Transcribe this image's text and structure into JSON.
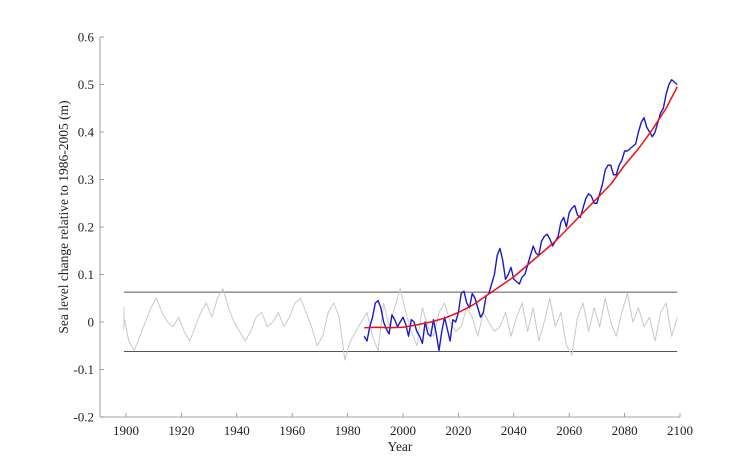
{
  "chart_data": {
    "type": "line",
    "title": "",
    "xlabel": "Year",
    "ylabel": "Sea level change relative to 1986-2005 (m)",
    "xlim": [
      1895,
      2100
    ],
    "ylim": [
      -0.2,
      0.6
    ],
    "xticks": [
      1900,
      1920,
      1940,
      1960,
      1980,
      2000,
      2020,
      2040,
      2060,
      2080,
      2100
    ],
    "yticks": [
      -0.2,
      -0.1,
      0,
      0.1,
      0.2,
      0.3,
      0.4,
      0.5,
      0.6
    ],
    "grid": false,
    "series": [
      {
        "color": "#c8c8c8",
        "x": [
          1895,
          1897,
          1899,
          1901,
          1903,
          1905,
          1907,
          1909,
          1911,
          1913,
          1915,
          1917,
          1919,
          1921,
          1923,
          1925,
          1927,
          1929,
          1931,
          1933,
          1935,
          1937,
          1939,
          1941,
          1943,
          1945,
          1947,
          1949,
          1951,
          1953,
          1955,
          1957,
          1959,
          1961,
          1963,
          1965,
          1967,
          1969,
          1971,
          1973,
          1975,
          1977,
          1979,
          1981,
          1983,
          1985,
          1987,
          1989,
          1991,
          1993,
          1995,
          1997,
          1999,
          2001,
          2003,
          2005,
          2007,
          2009,
          2011,
          2013,
          2015,
          2017,
          2019,
          2021,
          2023,
          2025,
          2027,
          2029,
          2031,
          2033,
          2035,
          2037,
          2039,
          2041,
          2043,
          2045,
          2047,
          2049,
          2051,
          2053,
          2055,
          2057,
          2059,
          2061,
          2063,
          2065,
          2067,
          2069,
          2071,
          2073,
          2075,
          2077,
          2079,
          2081,
          2083,
          2085,
          2087,
          2089,
          2091,
          2093,
          2095,
          2097,
          2099
        ],
        "y": [
          -0.015,
          0.03,
          0.01,
          -0.04,
          -0.06,
          -0.03,
          0.0,
          0.03,
          0.05,
          0.02,
          0.0,
          -0.01,
          0.01,
          -0.02,
          -0.04,
          -0.01,
          0.02,
          0.04,
          0.01,
          0.05,
          0.07,
          0.03,
          0.0,
          -0.02,
          -0.04,
          -0.02,
          0.01,
          0.02,
          -0.01,
          0.0,
          0.02,
          -0.01,
          0.01,
          0.04,
          0.05,
          0.02,
          -0.01,
          -0.05,
          -0.03,
          0.02,
          0.04,
          0.01,
          -0.08,
          -0.04,
          -0.02,
          0.0,
          0.02,
          -0.03,
          -0.06,
          0.04,
          -0.01,
          0.03,
          0.07,
          0.02,
          -0.02,
          -0.05,
          0.03,
          -0.01,
          -0.03,
          0.02,
          0.04,
          0.0,
          -0.02,
          -0.01,
          0.03,
          0.01,
          -0.03,
          0.02,
          0.0,
          -0.02,
          -0.01,
          0.02,
          -0.03,
          0.01,
          0.04,
          -0.02,
          0.03,
          -0.04,
          0.0,
          0.05,
          -0.01,
          0.02,
          -0.05,
          -0.07,
          0.01,
          0.04,
          -0.02,
          0.03,
          -0.01,
          0.05,
          0.0,
          -0.03,
          0.02,
          0.06,
          0.0,
          0.03,
          -0.01,
          0.01,
          -0.04,
          0.02,
          0.04,
          -0.03,
          0.01
        ]
      },
      {
        "color": "#1a1acc",
        "x": [
          1986,
          1987,
          1988,
          1989,
          1990,
          1991,
          1992,
          1993,
          1994,
          1995,
          1996,
          1997,
          1998,
          1999,
          2000,
          2001,
          2002,
          2003,
          2004,
          2005,
          2006,
          2007,
          2008,
          2009,
          2010,
          2011,
          2012,
          2013,
          2014,
          2015,
          2016,
          2017,
          2018,
          2019,
          2020,
          2021,
          2022,
          2023,
          2024,
          2025,
          2026,
          2027,
          2028,
          2029,
          2030,
          2031,
          2032,
          2033,
          2034,
          2035,
          2036,
          2037,
          2038,
          2039,
          2040,
          2041,
          2042,
          2043,
          2044,
          2045,
          2046,
          2047,
          2048,
          2049,
          2050,
          2051,
          2052,
          2053,
          2054,
          2055,
          2056,
          2057,
          2058,
          2059,
          2060,
          2061,
          2062,
          2063,
          2064,
          2065,
          2066,
          2067,
          2068,
          2069,
          2070,
          2071,
          2072,
          2073,
          2074,
          2075,
          2076,
          2077,
          2078,
          2079,
          2080,
          2081,
          2082,
          2083,
          2084,
          2085,
          2086,
          2087,
          2088,
          2089,
          2090,
          2091,
          2092,
          2093,
          2094,
          2095,
          2096,
          2097,
          2098,
          2099
        ],
        "y": [
          -0.03,
          -0.04,
          -0.01,
          0.01,
          0.04,
          0.045,
          0.03,
          0.0,
          -0.015,
          -0.025,
          0.015,
          0.005,
          -0.01,
          0.0,
          0.01,
          -0.005,
          -0.03,
          0.005,
          0.0,
          -0.02,
          -0.03,
          -0.045,
          0.0,
          -0.025,
          -0.03,
          0.005,
          -0.025,
          -0.06,
          -0.02,
          0.01,
          -0.015,
          -0.04,
          0.005,
          0.0,
          0.02,
          0.06,
          0.065,
          0.04,
          0.03,
          0.06,
          0.05,
          0.03,
          0.01,
          0.02,
          0.055,
          0.06,
          0.08,
          0.1,
          0.14,
          0.155,
          0.13,
          0.09,
          0.1,
          0.115,
          0.09,
          0.085,
          0.08,
          0.095,
          0.1,
          0.12,
          0.14,
          0.16,
          0.145,
          0.14,
          0.17,
          0.18,
          0.185,
          0.175,
          0.16,
          0.17,
          0.18,
          0.21,
          0.22,
          0.2,
          0.23,
          0.24,
          0.245,
          0.225,
          0.22,
          0.24,
          0.26,
          0.27,
          0.265,
          0.25,
          0.25,
          0.27,
          0.29,
          0.32,
          0.33,
          0.33,
          0.31,
          0.31,
          0.33,
          0.34,
          0.36,
          0.36,
          0.365,
          0.37,
          0.375,
          0.4,
          0.42,
          0.43,
          0.41,
          0.4,
          0.39,
          0.4,
          0.42,
          0.44,
          0.45,
          0.48,
          0.5,
          0.51,
          0.505,
          0.5
        ]
      },
      {
        "color": "#ee1111",
        "x": [
          1986,
          1990,
          1995,
          2000,
          2005,
          2010,
          2015,
          2020,
          2025,
          2030,
          2035,
          2040,
          2045,
          2050,
          2055,
          2060,
          2065,
          2070,
          2075,
          2080,
          2085,
          2090,
          2095,
          2099
        ],
        "y": [
          -0.012,
          -0.011,
          -0.012,
          -0.011,
          -0.006,
          0.0,
          0.008,
          0.02,
          0.035,
          0.055,
          0.075,
          0.095,
          0.12,
          0.145,
          0.17,
          0.2,
          0.23,
          0.26,
          0.29,
          0.33,
          0.365,
          0.405,
          0.45,
          0.495
        ]
      }
    ],
    "reference_lines": [
      {
        "y": 0.063,
        "color": "#555555",
        "x_start": 1895,
        "x_end": 2099
      },
      {
        "y": -0.062,
        "color": "#555555",
        "x_start": 1895,
        "x_end": 2099
      }
    ]
  }
}
